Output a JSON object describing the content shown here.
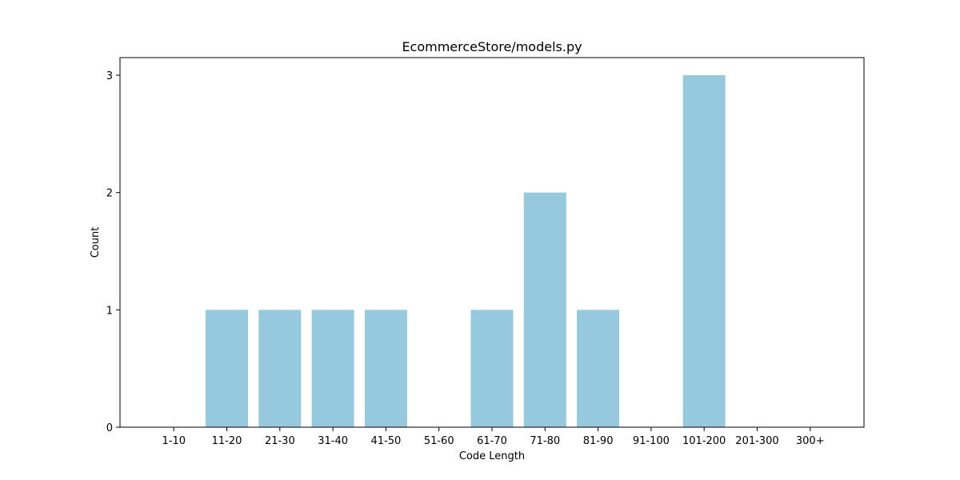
{
  "chart_data": {
    "type": "bar",
    "title": "EcommerceStore/models.py",
    "xlabel": "Code Length",
    "ylabel": "Count",
    "categories": [
      "1-10",
      "11-20",
      "21-30",
      "31-40",
      "41-50",
      "51-60",
      "61-70",
      "71-80",
      "81-90",
      "91-100",
      "101-200",
      "201-300",
      "300+"
    ],
    "values": [
      0,
      1,
      1,
      1,
      1,
      0,
      1,
      2,
      1,
      0,
      3,
      0,
      0
    ],
    "ylim": [
      0,
      3.15
    ],
    "yticks": [
      0,
      1,
      2,
      3
    ],
    "bar_color": "#96c9dd",
    "grid": false,
    "legend": "none"
  }
}
